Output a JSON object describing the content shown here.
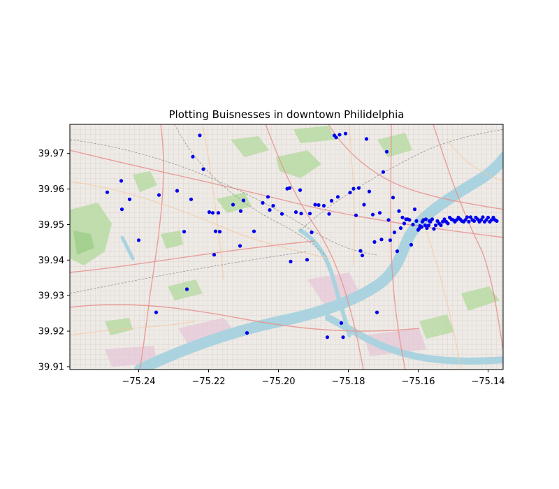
{
  "chart_data": {
    "type": "scatter",
    "title": "Plotting Buisnesses in downtown Philidelphia",
    "xlabel": "",
    "ylabel": "",
    "xlim": [
      -75.2597,
      -75.1357
    ],
    "ylim": [
      39.9092,
      39.9782
    ],
    "x_ticks": [
      {
        "value": -75.24,
        "label": "−75.24"
      },
      {
        "value": -75.22,
        "label": "−75.22"
      },
      {
        "value": -75.2,
        "label": "−75.20"
      },
      {
        "value": -75.18,
        "label": "−75.18"
      },
      {
        "value": -75.16,
        "label": "−75.16"
      },
      {
        "value": -75.14,
        "label": "−75.14"
      }
    ],
    "y_ticks": [
      {
        "value": 39.91,
        "label": "39.91"
      },
      {
        "value": 39.92,
        "label": "39.92"
      },
      {
        "value": 39.93,
        "label": "39.93"
      },
      {
        "value": 39.94,
        "label": "39.94"
      },
      {
        "value": 39.95,
        "label": "39.95"
      },
      {
        "value": 39.96,
        "label": "39.96"
      },
      {
        "value": 39.97,
        "label": "39.97"
      }
    ],
    "grid": false,
    "background": "street map basemap",
    "marker_color": "#0000ee",
    "series": [
      {
        "points": [
          [
            -75.249,
            39.9591
          ],
          [
            -75.245,
            39.9623
          ],
          [
            -75.2448,
            39.9543
          ],
          [
            -75.2426,
            39.9571
          ],
          [
            -75.24,
            39.9456
          ],
          [
            -75.235,
            39.9253
          ],
          [
            -75.2342,
            39.9583
          ],
          [
            -75.229,
            39.9595
          ],
          [
            -75.227,
            39.948
          ],
          [
            -75.2262,
            39.9318
          ],
          [
            -75.225,
            39.9571
          ],
          [
            -75.2245,
            39.9691
          ],
          [
            -75.2225,
            39.9751
          ],
          [
            -75.2215,
            39.9656
          ],
          [
            -75.2198,
            39.9535
          ],
          [
            -75.2188,
            39.9533
          ],
          [
            -75.2184,
            39.9415
          ],
          [
            -75.218,
            39.9481
          ],
          [
            -75.2172,
            39.9533
          ],
          [
            -75.2168,
            39.948
          ],
          [
            -75.213,
            39.9556
          ],
          [
            -75.211,
            39.944
          ],
          [
            -75.2108,
            39.9538
          ],
          [
            -75.21,
            39.9568
          ],
          [
            -75.209,
            39.9195
          ],
          [
            -75.207,
            39.9481
          ],
          [
            -75.2045,
            39.9561
          ],
          [
            -75.203,
            39.9578
          ],
          [
            -75.2025,
            39.9541
          ],
          [
            -75.2015,
            39.9553
          ],
          [
            -75.199,
            39.953
          ],
          [
            -75.1975,
            39.9601
          ],
          [
            -75.1968,
            39.9603
          ],
          [
            -75.1965,
            39.9396
          ],
          [
            -75.195,
            39.9535
          ],
          [
            -75.1938,
            39.9597
          ],
          [
            -75.1935,
            39.9531
          ],
          [
            -75.1918,
            39.9401
          ],
          [
            -75.191,
            39.9531
          ],
          [
            -75.1905,
            39.9478
          ],
          [
            -75.1895,
            39.9556
          ],
          [
            -75.1885,
            39.9555
          ],
          [
            -75.187,
            39.9553
          ],
          [
            -75.186,
            39.9183
          ],
          [
            -75.1855,
            39.953
          ],
          [
            -75.1848,
            39.9567
          ],
          [
            -75.184,
            39.9751
          ],
          [
            -75.1835,
            39.9745
          ],
          [
            -75.183,
            39.9578
          ],
          [
            -75.1825,
            39.9753
          ],
          [
            -75.182,
            39.9223
          ],
          [
            -75.1815,
            39.9183
          ],
          [
            -75.1808,
            39.9756
          ],
          [
            -75.1795,
            39.959
          ],
          [
            -75.1785,
            39.9601
          ],
          [
            -75.1778,
            39.9526
          ],
          [
            -75.177,
            39.9603
          ],
          [
            -75.1765,
            39.9426
          ],
          [
            -75.176,
            39.9413
          ],
          [
            -75.1755,
            39.9556
          ],
          [
            -75.1748,
            39.9741
          ],
          [
            -75.174,
            39.9593
          ],
          [
            -75.173,
            39.9528
          ],
          [
            -75.1725,
            39.9451
          ],
          [
            -75.1718,
            39.9253
          ],
          [
            -75.171,
            39.9533
          ],
          [
            -75.1705,
            39.9458
          ],
          [
            -75.17,
            39.9648
          ],
          [
            -75.169,
            39.9705
          ],
          [
            -75.1685,
            39.9513
          ],
          [
            -75.168,
            39.9456
          ],
          [
            -75.1672,
            39.9576
          ],
          [
            -75.1668,
            39.9478
          ],
          [
            -75.166,
            39.9425
          ],
          [
            -75.1655,
            39.9538
          ],
          [
            -75.165,
            39.949
          ],
          [
            -75.1645,
            39.952
          ],
          [
            -75.164,
            39.9503
          ],
          [
            -75.1635,
            39.9515
          ],
          [
            -75.163,
            39.9515
          ],
          [
            -75.1625,
            39.9513
          ],
          [
            -75.162,
            39.9443
          ],
          [
            -75.1615,
            39.95
          ],
          [
            -75.161,
            39.9543
          ],
          [
            -75.1605,
            39.951
          ],
          [
            -75.16,
            39.9485
          ],
          [
            -75.1598,
            39.9488
          ],
          [
            -75.1595,
            39.9496
          ],
          [
            -75.159,
            39.9493
          ],
          [
            -75.1588,
            39.9508
          ],
          [
            -75.1585,
            39.9513
          ],
          [
            -75.158,
            39.9498
          ],
          [
            -75.1578,
            39.9515
          ],
          [
            -75.1575,
            39.949
          ],
          [
            -75.157,
            39.9498
          ],
          [
            -75.1568,
            39.951
          ],
          [
            -75.1565,
            39.9508
          ],
          [
            -75.156,
            39.9515
          ],
          [
            -75.1555,
            39.9488
          ],
          [
            -75.155,
            39.9498
          ],
          [
            -75.1545,
            39.951
          ],
          [
            -75.154,
            39.9503
          ],
          [
            -75.1535,
            39.9498
          ],
          [
            -75.153,
            39.9508
          ],
          [
            -75.1525,
            39.9515
          ],
          [
            -75.152,
            39.9508
          ],
          [
            -75.1515,
            39.9503
          ],
          [
            -75.151,
            39.952
          ],
          [
            -75.1505,
            39.9515
          ],
          [
            -75.15,
            39.9513
          ],
          [
            -75.1495,
            39.9508
          ],
          [
            -75.149,
            39.9513
          ],
          [
            -75.1485,
            39.952
          ],
          [
            -75.148,
            39.9515
          ],
          [
            -75.1475,
            39.951
          ],
          [
            -75.147,
            39.9508
          ],
          [
            -75.1465,
            39.9513
          ],
          [
            -75.146,
            39.9521
          ],
          [
            -75.1455,
            39.9508
          ],
          [
            -75.145,
            39.9521
          ],
          [
            -75.1445,
            39.9513
          ],
          [
            -75.144,
            39.951
          ],
          [
            -75.1435,
            39.952
          ],
          [
            -75.143,
            39.9515
          ],
          [
            -75.1425,
            39.9508
          ],
          [
            -75.142,
            39.9513
          ],
          [
            -75.1415,
            39.9521
          ],
          [
            -75.141,
            39.9508
          ],
          [
            -75.1405,
            39.9513
          ],
          [
            -75.14,
            39.952
          ],
          [
            -75.1395,
            39.9508
          ],
          [
            -75.139,
            39.9513
          ],
          [
            -75.1385,
            39.952
          ],
          [
            -75.138,
            39.9513
          ],
          [
            -75.1375,
            39.951
          ]
        ]
      }
    ]
  }
}
